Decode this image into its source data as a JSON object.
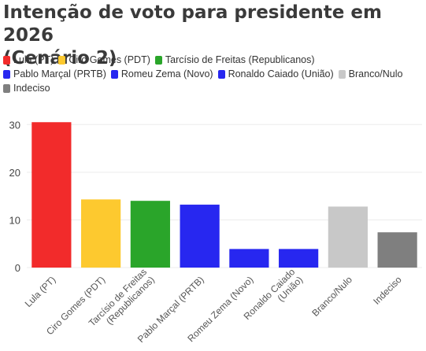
{
  "header": {
    "title_line1": "Intenção de voto para presidente em 2026",
    "title_line2": "(Cenário 2)"
  },
  "legend": [
    {
      "label": "Lula (PT)",
      "color": "#f22b2b"
    },
    {
      "label": "Ciro Gomes (PDT)",
      "color": "#fdc92f"
    },
    {
      "label": "Tarcísio de Freitas (Republicanos)",
      "color": "#2aa52a"
    },
    {
      "label": "Pablo Marçal (PRTB)",
      "color": "#2727f0"
    },
    {
      "label": "Romeu Zema (Novo)",
      "color": "#2727f0"
    },
    {
      "label": "Ronaldo Caiado (União)",
      "color": "#2727f0"
    },
    {
      "label": "Branco/Nulo",
      "color": "#c8c8c8"
    },
    {
      "label": "Indeciso",
      "color": "#7f7f7f"
    }
  ],
  "chart_data": {
    "type": "bar",
    "title": "Intenção de voto para presidente em 2026 (Cenário 2)",
    "categories": [
      "Lula (PT)",
      "Ciro Gomes (PDT)",
      "Tarcísio de Freitas (Republicanos)",
      "Pablo Marçal (PRTB)",
      "Romeu Zema (Novo)",
      "Ronaldo Caiado (União)",
      "Branco/Nulo",
      "Indeciso"
    ],
    "category_label_lines": [
      [
        "Lula (PT)"
      ],
      [
        "Ciro Gomes (PDT)"
      ],
      [
        "Tarcísio de Freitas",
        "(Republicanos)"
      ],
      [
        "Pablo Marçal (PRTB)"
      ],
      [
        "Romeu Zema (Novo)"
      ],
      [
        "Ronaldo Caiado",
        "(União)"
      ],
      [
        "Branco/Nulo"
      ],
      [
        "Indeciso"
      ]
    ],
    "values": [
      30.5,
      14.3,
      14.0,
      13.2,
      3.9,
      3.9,
      12.8,
      7.4
    ],
    "colors": [
      "#f22b2b",
      "#fdc92f",
      "#2aa52a",
      "#2727f0",
      "#2727f0",
      "#2727f0",
      "#c8c8c8",
      "#7f7f7f"
    ],
    "yticks": [
      0,
      10,
      20,
      30
    ],
    "ylim": [
      0,
      35
    ],
    "xlabel": "",
    "ylabel": "",
    "grid": true,
    "legend_position": "top"
  }
}
